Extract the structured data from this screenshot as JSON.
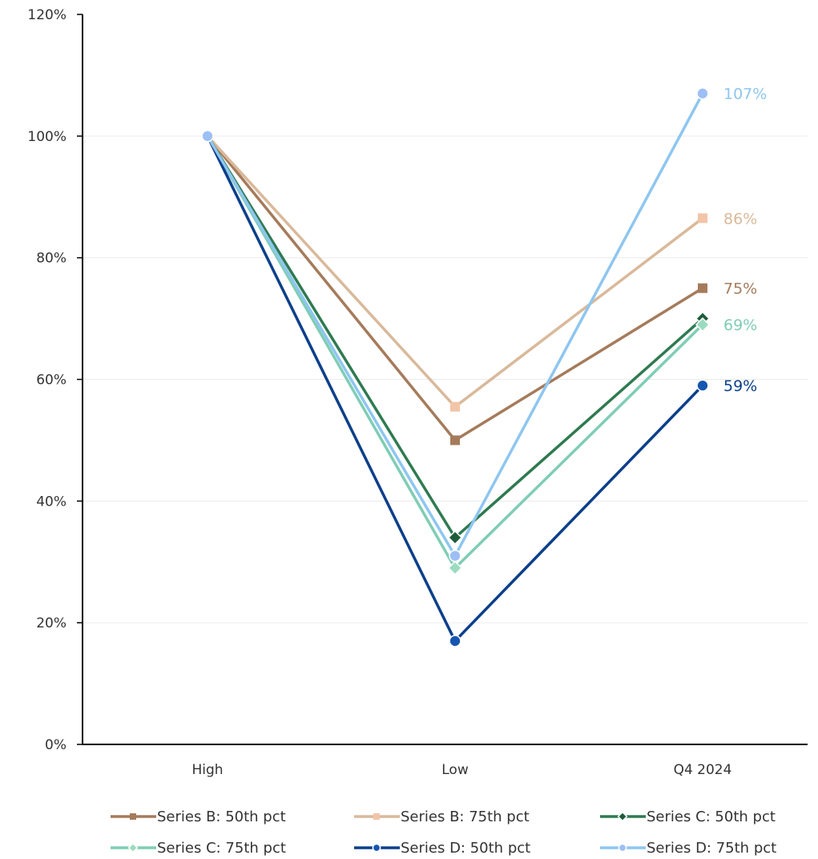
{
  "chart_data": {
    "type": "line",
    "title": "",
    "xlabel": "",
    "ylabel": "",
    "categories": [
      "High",
      "Low",
      "Q4 2024"
    ],
    "y_axis": {
      "min": 0,
      "max": 120,
      "ticks": [
        0,
        20,
        40,
        60,
        80,
        100,
        120
      ],
      "tick_labels": [
        "0%",
        "20%",
        "40%",
        "60%",
        "80%",
        "100%",
        "120%"
      ]
    },
    "grid": true,
    "legend_position": "bottom",
    "series": [
      {
        "name": "Series B: 50th pct",
        "values": [
          100,
          50,
          75
        ],
        "end_label": "75%",
        "color": "#A57B5B",
        "marker": "square"
      },
      {
        "name": "Series B: 75th pct",
        "values": [
          100,
          55.5,
          86.5
        ],
        "end_label": "86%",
        "color": "#D9B99A",
        "marker_color": "#F2C4A8",
        "marker": "square"
      },
      {
        "name": "Series C: 50th pct",
        "values": [
          100,
          34,
          70
        ],
        "end_label": "",
        "color": "#2F7A50",
        "marker_color": "#1E5C3A",
        "marker": "diamond"
      },
      {
        "name": "Series C: 75th pct",
        "values": [
          100,
          29,
          69
        ],
        "end_label": "69%",
        "color": "#7FCDB5",
        "marker_color": "#9ADBC0",
        "marker": "diamond"
      },
      {
        "name": "Series D: 50th pct",
        "values": [
          100,
          17,
          59
        ],
        "end_label": "59%",
        "color": "#0B3F8A",
        "marker_color": "#1656B0",
        "marker": "circle"
      },
      {
        "name": "Series D: 75th pct",
        "values": [
          100,
          31,
          107
        ],
        "end_label": "107%",
        "color": "#8EC6F0",
        "marker_color": "#9DBFF5",
        "marker": "circle"
      }
    ]
  }
}
